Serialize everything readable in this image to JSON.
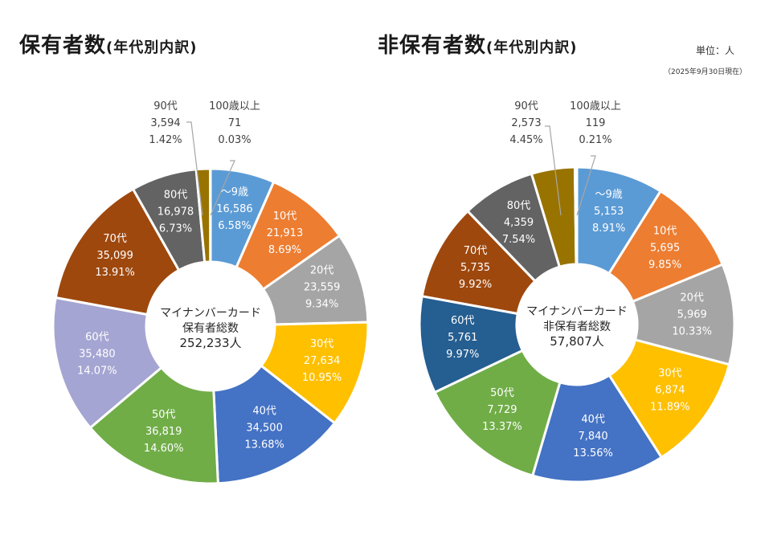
{
  "unit_label": "単位：人",
  "as_of": "（2025年9月30日現在）",
  "chart_data": [
    {
      "type": "pie",
      "variant": "donut",
      "title": "保有者数",
      "title_suffix": "(年代別内訳)",
      "center_text": [
        "マイナンバーカード",
        "保有者総数",
        "252,233人"
      ],
      "categories": [
        "～9歳",
        "10代",
        "20代",
        "30代",
        "40代",
        "50代",
        "60代",
        "70代",
        "80代",
        "90代",
        "100歳以上"
      ],
      "values": [
        16586,
        21913,
        23559,
        27634,
        34500,
        36819,
        35480,
        35099,
        16978,
        3594,
        71
      ],
      "value_labels": [
        "16,586",
        "21,913",
        "23,559",
        "27,634",
        "34,500",
        "36,819",
        "35,480",
        "35,099",
        "16,978",
        "3,594",
        "71"
      ],
      "percent_labels": [
        "6.58%",
        "8.69%",
        "9.34%",
        "10.95%",
        "13.68%",
        "14.60%",
        "14.07%",
        "13.91%",
        "6.73%",
        "1.42%",
        "0.03%"
      ],
      "colors": [
        "#5b9bd5",
        "#ed7d31",
        "#a5a5a5",
        "#ffc000",
        "#4472c4",
        "#70ad47",
        "#a5a5d3",
        "#9e480e",
        "#636363",
        "#997300",
        "#264478"
      ]
    },
    {
      "type": "pie",
      "variant": "donut",
      "title": "非保有者数",
      "title_suffix": "(年代別内訳)",
      "center_text": [
        "マイナンバーカード",
        "非保有者総数",
        "57,807人"
      ],
      "categories": [
        "～9歳",
        "10代",
        "20代",
        "30代",
        "40代",
        "50代",
        "60代",
        "70代",
        "80代",
        "90代",
        "100歳以上"
      ],
      "values": [
        5153,
        5695,
        5969,
        6874,
        7840,
        7729,
        5761,
        5735,
        4359,
        2573,
        119
      ],
      "value_labels": [
        "5,153",
        "5,695",
        "5,969",
        "6,874",
        "7,840",
        "7,729",
        "5,761",
        "5,735",
        "4,359",
        "2,573",
        "119"
      ],
      "percent_labels": [
        "8.91%",
        "9.85%",
        "10.33%",
        "11.89%",
        "13.56%",
        "13.37%",
        "9.97%",
        "9.92%",
        "7.54%",
        "4.45%",
        "0.21%"
      ],
      "colors": [
        "#5b9bd5",
        "#ed7d31",
        "#a5a5a5",
        "#ffc000",
        "#4472c4",
        "#70ad47",
        "#255e91",
        "#9e480e",
        "#636363",
        "#997300",
        "#264478"
      ]
    }
  ]
}
